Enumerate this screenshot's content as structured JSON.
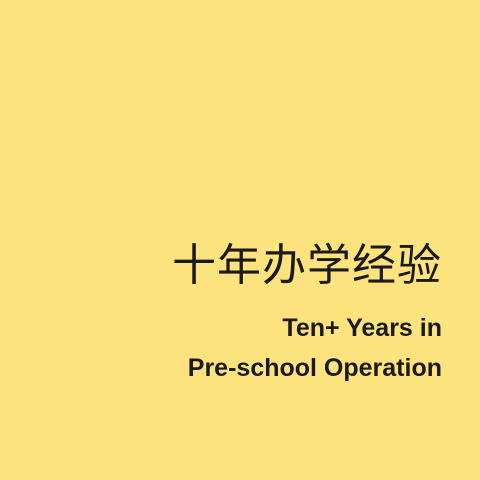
{
  "colors": {
    "background": "#fde37d",
    "text": "#1a1a1a"
  },
  "tile": {
    "headline_cn": "十年办学经验",
    "subline_1": "Ten+ Years in",
    "subline_2": "Pre-school Operation"
  }
}
